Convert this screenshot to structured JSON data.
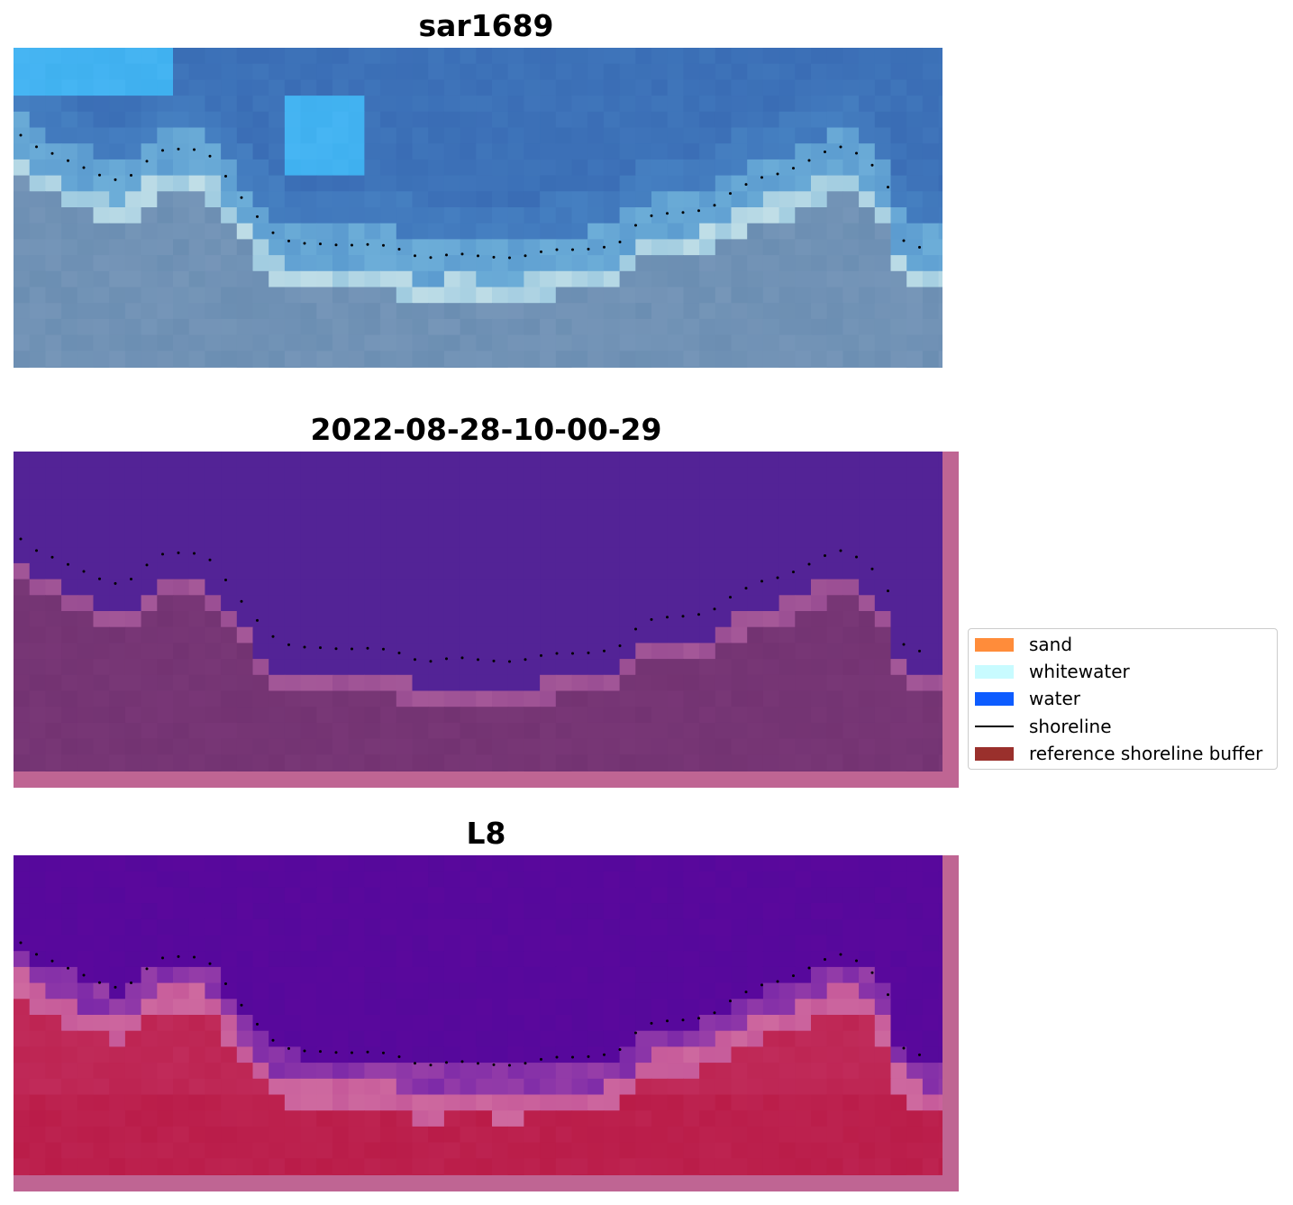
{
  "panels": [
    {
      "title": "sar1689",
      "kind": "rgb"
    },
    {
      "title": "2022-08-28-10-00-29",
      "kind": "classified"
    },
    {
      "title": "L8",
      "kind": "mndwi"
    }
  ],
  "legend": {
    "items": [
      {
        "label": "sand",
        "type": "patch",
        "color": "#ff8c3a"
      },
      {
        "label": "whitewater",
        "type": "patch",
        "color": "#c8fbff"
      },
      {
        "label": "water",
        "type": "patch",
        "color": "#0d5cff"
      },
      {
        "label": "shoreline",
        "type": "line",
        "color": "#000000"
      },
      {
        "label": "reference shoreline buffer",
        "type": "patch",
        "color": "#9a302c"
      }
    ]
  },
  "colors": {
    "rgb_water_deep": "#3a6db5",
    "rgb_water_light": "#3fb0ef",
    "rgb_land": "#6b8eb2",
    "rgb_foam": "#e9f6f0",
    "class_water": "#532396",
    "class_land": "#733372",
    "mndwi_water": "#5a089c",
    "mndwi_land": "#c02b5a",
    "buffer_border": "#bf6593"
  }
}
